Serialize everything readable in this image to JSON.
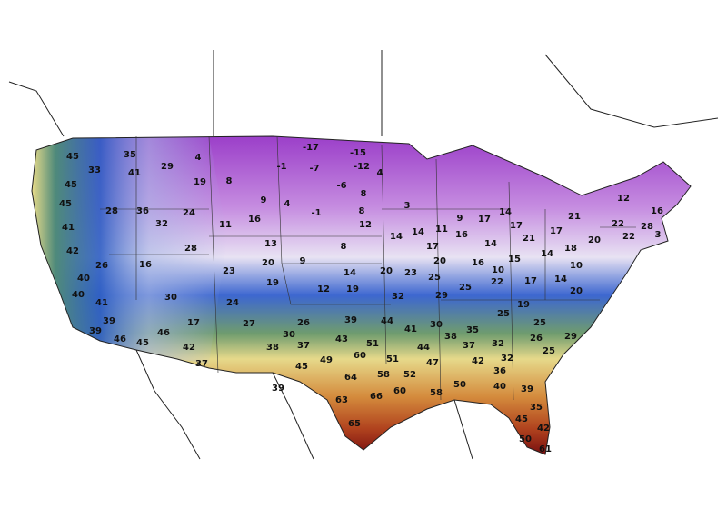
{
  "map": {
    "labels": [
      45,
      33,
      35,
      29,
      41,
      4,
      45,
      19,
      8,
      45,
      28,
      36,
      32,
      24,
      11,
      16,
      9,
      4,
      -1,
      41,
      42,
      28,
      13,
      26,
      16,
      20,
      40,
      23,
      19,
      40,
      30,
      24,
      41,
      12,
      19,
      17,
      27,
      39,
      26,
      30,
      39,
      46,
      45,
      46,
      42,
      38,
      37,
      37,
      45,
      49,
      39,
      -17,
      -15,
      -1,
      -7,
      -12,
      4,
      -6,
      8,
      3,
      8,
      12,
      8,
      14,
      14,
      11,
      9,
      17,
      14,
      17,
      21,
      12,
      16,
      22,
      28,
      22,
      3,
      20,
      18,
      17,
      21,
      14,
      16,
      17,
      9,
      14,
      20,
      23,
      25,
      20,
      16,
      15,
      14,
      10,
      22,
      17,
      14,
      10,
      20,
      25,
      29,
      32,
      19,
      25,
      25,
      44,
      39,
      41,
      30,
      38,
      35,
      32,
      26,
      29,
      25,
      37,
      43,
      51,
      60,
      44,
      42,
      32,
      51,
      47,
      64,
      58,
      52,
      36,
      40,
      60,
      50,
      58,
      39,
      63,
      66,
      35,
      45,
      42,
      65,
      50,
      61
    ]
  }
}
